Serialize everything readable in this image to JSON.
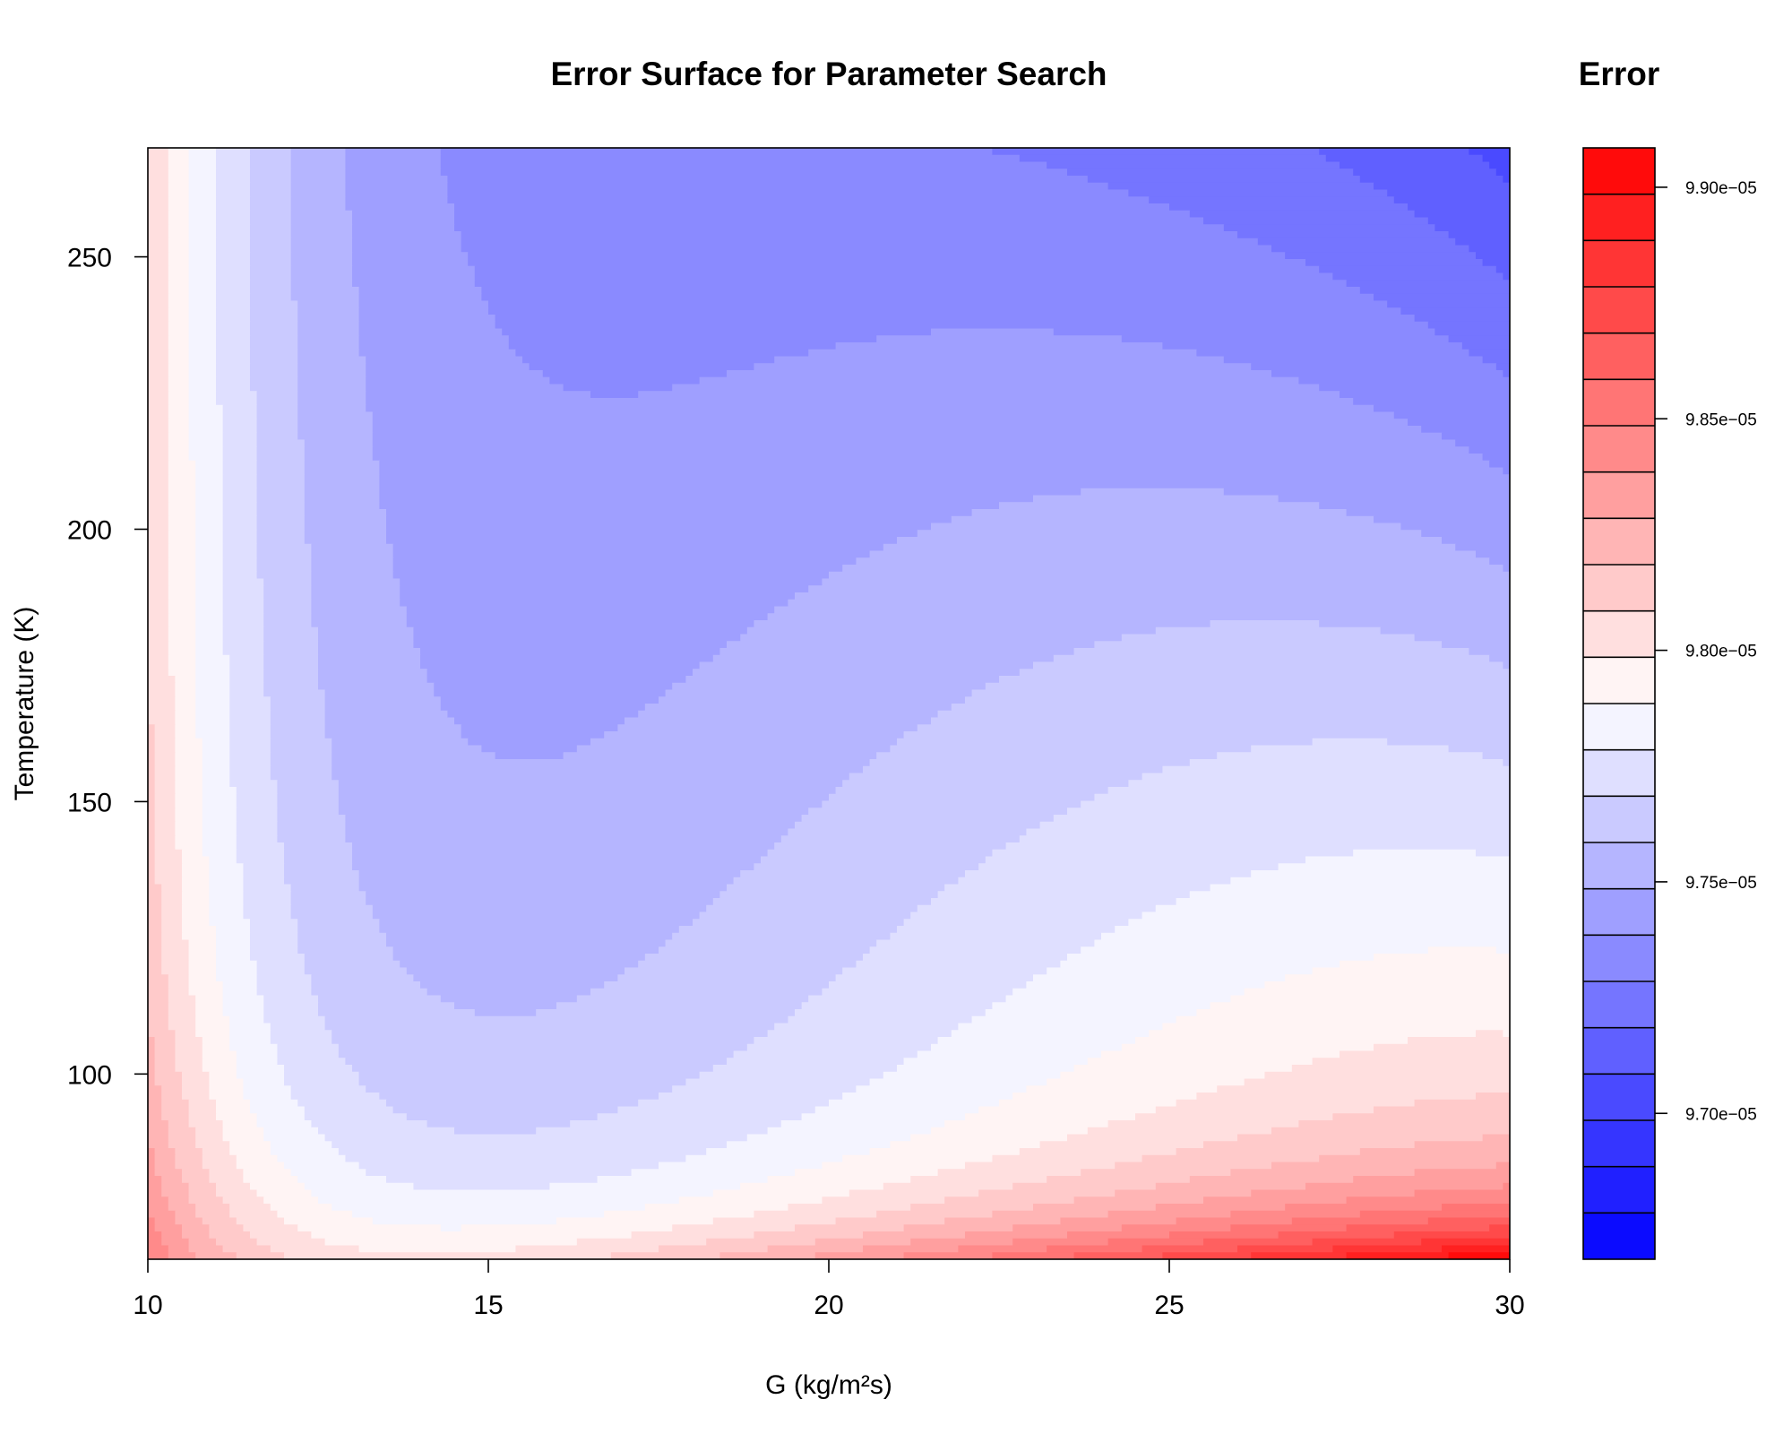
{
  "chart_data": {
    "type": "heatmap",
    "subtype": "filled-contour",
    "title": "Error Surface for Parameter Search",
    "xlabel": "G (kg/m²s)",
    "ylabel": "Temperature (K)",
    "xlim": [
      10,
      30
    ],
    "ylim": [
      66,
      270
    ],
    "x_ticks": [
      10,
      15,
      20,
      25,
      30
    ],
    "y_ticks": [
      100,
      150,
      200,
      250
    ],
    "colorbar": {
      "title": "Error",
      "range": [
        9.6685e-05,
        9.9085e-05
      ],
      "levels": 24,
      "low_color": "#0000ff",
      "mid_color": "#ffffff",
      "high_color": "#ff0000",
      "ticks": [
        9.7e-05,
        9.75e-05,
        9.8e-05,
        9.85e-05,
        9.9e-05
      ],
      "tick_labels": [
        "9.70e−05",
        "9.75e−05",
        "9.80e−05",
        "9.85e−05",
        "9.90e−05"
      ]
    },
    "grid": false,
    "legend": "right"
  }
}
